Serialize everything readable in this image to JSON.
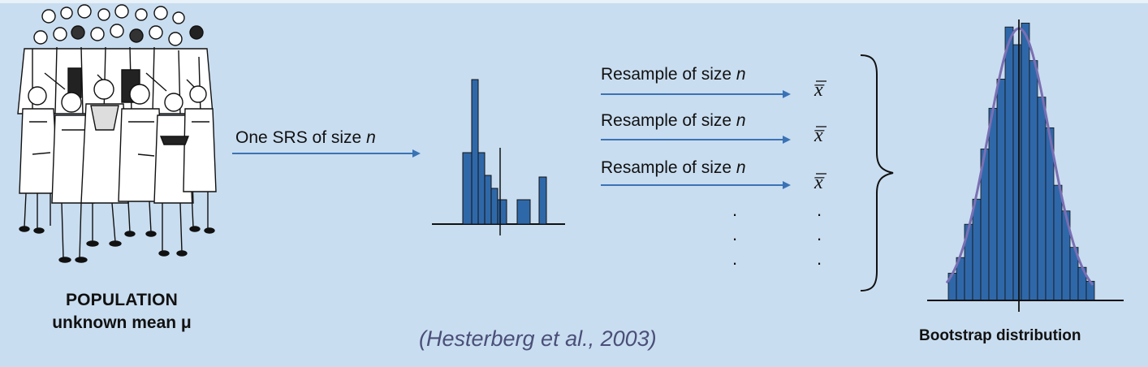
{
  "population": {
    "title": "POPULATION",
    "subtitle": "unknown mean μ"
  },
  "sampling": {
    "srs_label": "One SRS of size ",
    "srs_n": "n"
  },
  "resamples": [
    {
      "label": "Resample of size ",
      "n": "n",
      "stat": "x̅"
    },
    {
      "label": "Resample of size ",
      "n": "n",
      "stat": "x̅"
    },
    {
      "label": "Resample of size ",
      "n": "n",
      "stat": "x̅"
    }
  ],
  "ellipsis": ".",
  "bootstrap": {
    "title": "Bootstrap distribution"
  },
  "citation": "(Hesterberg et al., 2003)",
  "colors": {
    "background": "#c9ddf0",
    "arrow": "#3a73b5",
    "bar": "#2f68a9",
    "curve": "#7a6fb3",
    "citation": "#4a4f78"
  },
  "icons": {
    "population": "crowd-of-people-illustration",
    "brace": "right-curly-brace"
  }
}
